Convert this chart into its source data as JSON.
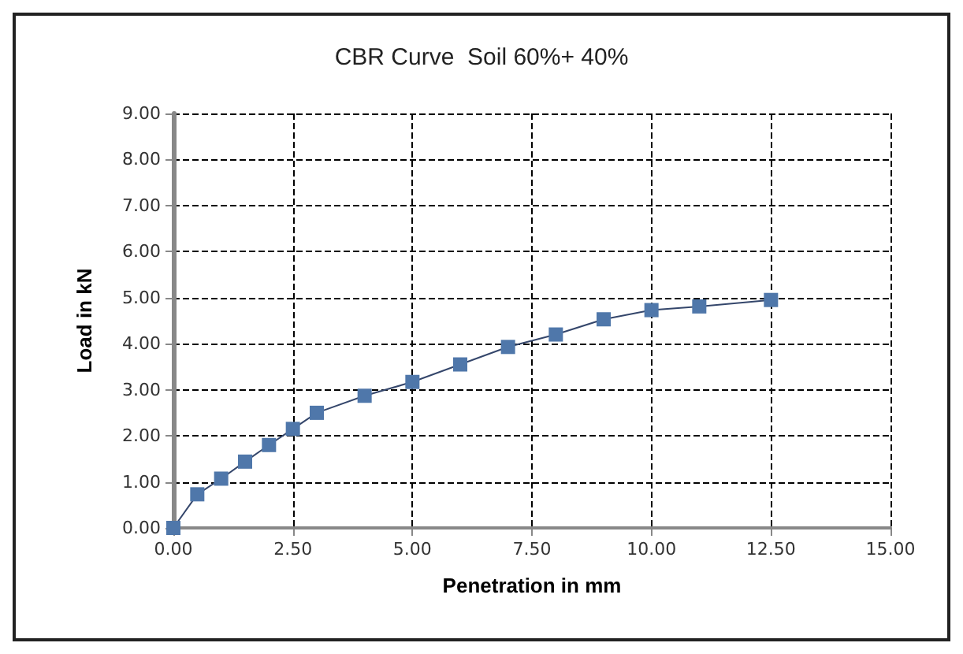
{
  "chart_data": {
    "type": "line",
    "title": "CBR Curve  Soil 60%+ 40%",
    "xlabel": "Penetration in mm",
    "ylabel": "Load in kN",
    "x": [
      0,
      0.5,
      1,
      1.5,
      2,
      2.5,
      3,
      4,
      5,
      6,
      7,
      8,
      9,
      10,
      11,
      12.5
    ],
    "series": [
      {
        "color": "#4f77aa",
        "values": [
          0,
          0.73,
          1.07,
          1.44,
          1.8,
          2.15,
          2.5,
          2.87,
          3.17,
          3.55,
          3.93,
          4.2,
          4.53,
          4.73,
          4.81,
          4.95
        ]
      }
    ],
    "xlim": [
      0,
      15
    ],
    "xticks": [
      {
        "value": 0,
        "label": "0.00"
      },
      {
        "value": 2.5,
        "label": "2.50"
      },
      {
        "value": 5,
        "label": "5.00"
      },
      {
        "value": 7.5,
        "label": "7.50"
      },
      {
        "value": 10,
        "label": "10.00"
      },
      {
        "value": 12.5,
        "label": "12.50"
      },
      {
        "value": 15,
        "label": "15.00"
      }
    ],
    "ylim": [
      0,
      9
    ],
    "yticks": [
      {
        "value": 0,
        "label": "0.00"
      },
      {
        "value": 1,
        "label": "1.00"
      },
      {
        "value": 2,
        "label": "2.00"
      },
      {
        "value": 3,
        "label": "3.00"
      },
      {
        "value": 4,
        "label": "4.00"
      },
      {
        "value": 5,
        "label": "5.00"
      },
      {
        "value": 6,
        "label": "6.00"
      },
      {
        "value": 7,
        "label": "7.00"
      },
      {
        "value": 8,
        "label": "8.00"
      },
      {
        "value": 9,
        "label": "9.00"
      }
    ],
    "grid": true,
    "marker": "square",
    "line_style": "solid"
  }
}
